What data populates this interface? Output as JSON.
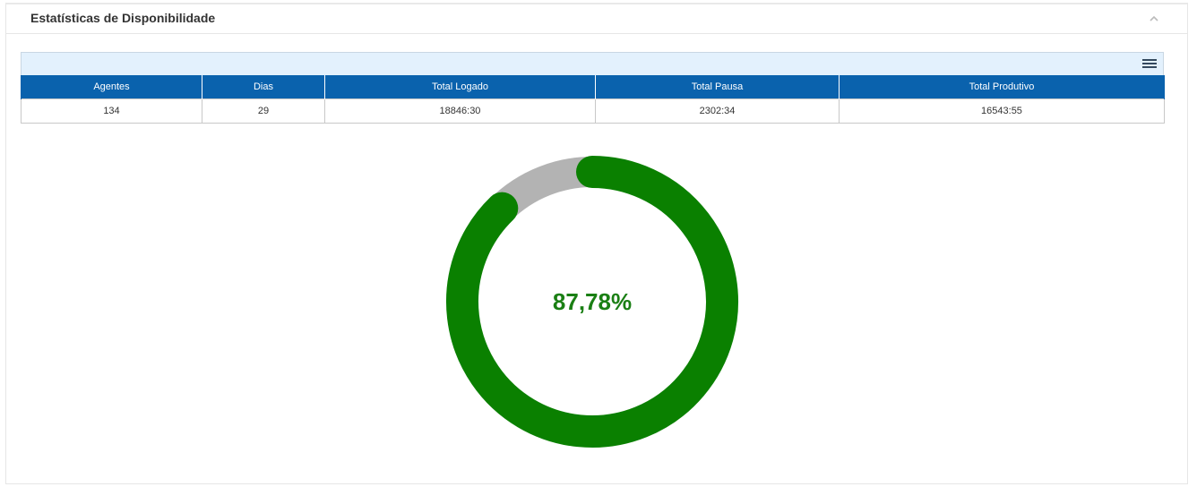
{
  "panel": {
    "title": "Estatísticas de Disponibilidade",
    "collapse_icon": "chevron-up-icon",
    "menu_icon": "hamburger-menu-icon"
  },
  "table": {
    "columns": [
      "Agentes",
      "Dias",
      "Total Logado",
      "Total Pausa",
      "Total Produtivo"
    ],
    "rows": [
      [
        "134",
        "29",
        "18846:30",
        "2302:34",
        "16543:55"
      ]
    ]
  },
  "chart_data": {
    "type": "pie",
    "value": 87.78,
    "max": 100,
    "value_label": "87,78%",
    "colors": {
      "filled": "#0a8000",
      "remainder": "#b3b3b3"
    }
  }
}
